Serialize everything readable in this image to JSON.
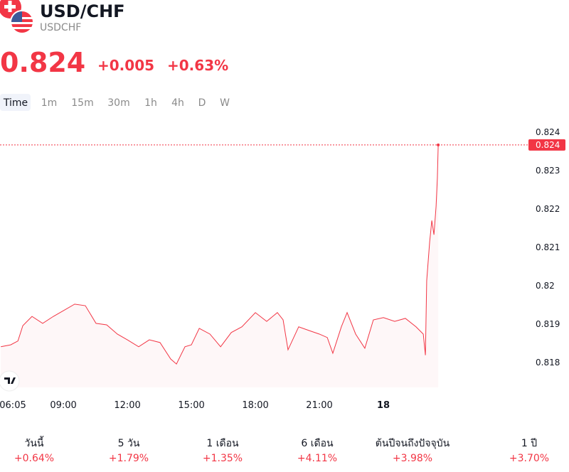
{
  "header": {
    "title": "USD/CHF",
    "symbol": "USDCHF",
    "price": "0.824",
    "change": "+0.005",
    "change_percent": "+0.63%"
  },
  "timeframes": [
    "Time",
    "1m",
    "15m",
    "30m",
    "1h",
    "4h",
    "D",
    "W"
  ],
  "chart_data": {
    "type": "line",
    "x": [
      6.07,
      6.53,
      6.87,
      7.1,
      7.53,
      8.03,
      8.53,
      9,
      9.53,
      10.03,
      10.53,
      11.03,
      11.53,
      12,
      12.53,
      13.03,
      13.53,
      14.03,
      14.3,
      14.7,
      15,
      15.37,
      15.87,
      16.37,
      16.87,
      17.37,
      18,
      18.53,
      19.03,
      19.3,
      19.53,
      20.03,
      20.53,
      21,
      21.37,
      21.63,
      22.03,
      22.3,
      22.7,
      23.13,
      23.53,
      24,
      24.53,
      25.03,
      25.53,
      25.87,
      25.97,
      26.03,
      26.17,
      26.27,
      26.37,
      26.47,
      26.53,
      26.57
    ],
    "series": [
      {
        "name": "USDCHF",
        "color": "#f23645",
        "values": [
          0.81841,
          0.81846,
          0.81856,
          0.81896,
          0.8192,
          0.81902,
          0.8192,
          0.81935,
          0.81952,
          0.81948,
          0.81902,
          0.81898,
          0.81874,
          0.81859,
          0.81841,
          0.81859,
          0.81852,
          0.81809,
          0.81796,
          0.81841,
          0.81846,
          0.81889,
          0.81874,
          0.81841,
          0.81878,
          0.81893,
          0.8193,
          0.81907,
          0.8193,
          0.81911,
          0.81833,
          0.81893,
          0.81883,
          0.81874,
          0.81865,
          0.81824,
          0.81893,
          0.8193,
          0.81874,
          0.81837,
          0.81911,
          0.81917,
          0.81907,
          0.81915,
          0.81893,
          0.81874,
          0.81819,
          0.82013,
          0.82115,
          0.8217,
          0.82133,
          0.82207,
          0.82281,
          0.82367
        ]
      }
    ],
    "xlim": [
      6.03,
      30.7
    ],
    "xticks": [
      {
        "value": 6.083,
        "label": "06:05"
      },
      {
        "value": 9,
        "label": "09:00"
      },
      {
        "value": 12,
        "label": "12:00"
      },
      {
        "value": 15,
        "label": "15:00"
      },
      {
        "value": 18,
        "label": "18:00"
      },
      {
        "value": 21,
        "label": "21:00"
      },
      {
        "value": 24,
        "label": "18"
      }
    ],
    "ylim": [
      0.81735,
      0.82439
    ],
    "yticks": [
      0.818,
      0.819,
      0.82,
      0.821,
      0.822,
      0.823,
      0.824
    ],
    "last_price": {
      "value": 0.82367,
      "label": "0.824"
    },
    "grid": false
  },
  "performance": [
    {
      "label": "วันนี้",
      "value": "+0.64%"
    },
    {
      "label": "5 วัน",
      "value": "+1.79%"
    },
    {
      "label": "1 เดือน",
      "value": "+1.35%"
    },
    {
      "label": "6 เดือน",
      "value": "+4.11%"
    },
    {
      "label": "ต้นปีจนถึงปัจจุบัน",
      "value": "+3.98%"
    },
    {
      "label": "1 ปี",
      "value": "+3.70%"
    }
  ]
}
